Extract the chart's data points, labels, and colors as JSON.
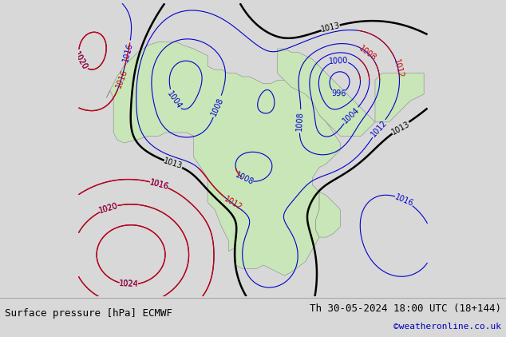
{
  "title_left": "Surface pressure [hPa] ECMWF",
  "title_right": "Th 30-05-2024 18:00 UTC (18+144)",
  "credit": "©weatheronline.co.uk",
  "bg_color": "#d8d8d8",
  "land_color": "#c8e6b8",
  "sea_color": "#d8d8d8",
  "contour_blue_color": "#0000cc",
  "contour_red_color": "#cc0000",
  "contour_black_color": "#000000",
  "label_fontsize": 7,
  "title_fontsize": 9,
  "credit_fontsize": 8,
  "credit_color": "#0000bb",
  "lon_min": -25,
  "lon_max": 75,
  "lat_min": -42,
  "lat_max": 42
}
